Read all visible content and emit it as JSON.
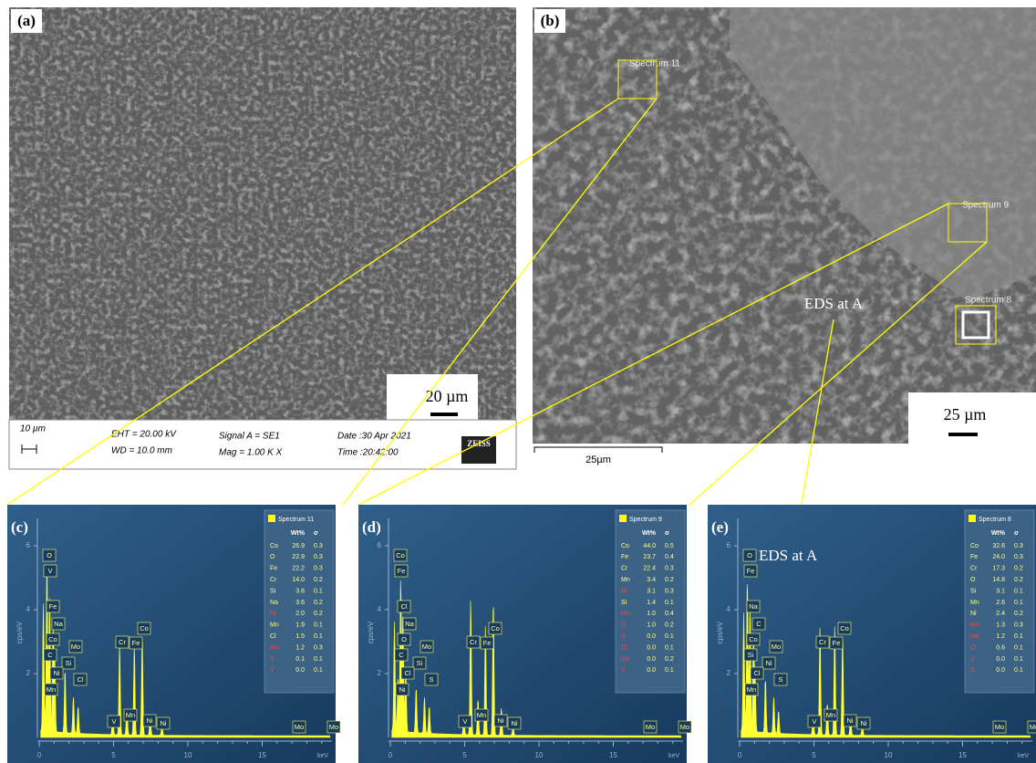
{
  "panel_a": {
    "label": "(a)",
    "scale_bar": "20 µm",
    "info": {
      "scale": "10 µm",
      "eht": "EHT = 20.00 kV",
      "wd": "WD = 10.0 mm",
      "signal": "Signal A = SE1",
      "mag": "Mag =   1.00 K X",
      "date": "Date :30 Apr 2021",
      "time": "Time :20:42:00",
      "brand": "ZEISS"
    }
  },
  "panel_b": {
    "label": "(b)",
    "spectra": [
      "Spectrum 11",
      "Spectrum 9",
      "Spectrum 8"
    ],
    "annotation": "EDS at A",
    "scale_bar": "25 µm",
    "instrument_scale": "25µm"
  },
  "axis": {
    "y_label": "cps/eV",
    "yticks": [
      "2",
      "4",
      "6"
    ],
    "xticks": [
      "0",
      "5",
      "10",
      "15"
    ],
    "x_unit": "keV"
  },
  "spectra": [
    {
      "label": "(c)",
      "title": "Spectrum 11",
      "header": [
        "Wt%",
        "σ"
      ],
      "rows": [
        [
          "Co",
          "26.9",
          "0.3"
        ],
        [
          "O",
          "22.9",
          "0.3"
        ],
        [
          "Fe",
          "22.2",
          "0.3"
        ],
        [
          "Cr",
          "14.0",
          "0.2"
        ],
        [
          "Si",
          "3.6",
          "0.1"
        ],
        [
          "Na",
          "3.6",
          "0.2"
        ],
        [
          "Ni",
          "2.0",
          "0.2"
        ],
        [
          "Mn",
          "1.9",
          "0.1"
        ],
        [
          "Cl",
          "1.5",
          "0.1"
        ],
        [
          "Mo",
          "1.2",
          "0.3"
        ],
        [
          "S",
          "0.1",
          "0.1"
        ],
        [
          "V",
          "0.0",
          "0.1"
        ]
      ],
      "row_colors": [
        "#ffff80",
        "#ffff80",
        "#ffff80",
        "#ffff80",
        "#ffff80",
        "#ffff80",
        "#ff4040",
        "#ffff80",
        "#ffff80",
        "#ff4040",
        "#ff4040",
        "#ff4040"
      ],
      "peaks": [
        "O",
        "V",
        "Fe",
        "Na",
        "Co",
        "Mo",
        "C",
        "Si",
        "Ni",
        "Cl",
        "Mn",
        "Cr",
        "Fe",
        "Co",
        "V",
        "Mn",
        "Ni",
        "Ni",
        "Mo",
        "Mo"
      ]
    },
    {
      "label": "(d)",
      "title": "Spectrum 9",
      "header": [
        "Wt%",
        "σ"
      ],
      "rows": [
        [
          "Co",
          "44.0",
          "0.5"
        ],
        [
          "Fe",
          "23.7",
          "0.4"
        ],
        [
          "Cr",
          "22.4",
          "0.3"
        ],
        [
          "Mn",
          "3.4",
          "0.2"
        ],
        [
          "Ni",
          "3.1",
          "0.3"
        ],
        [
          "Si",
          "1.4",
          "0.1"
        ],
        [
          "Mo",
          "1.0",
          "0.4"
        ],
        [
          "O",
          "1.0",
          "0.2"
        ],
        [
          "S",
          "0.0",
          "0.1"
        ],
        [
          "Cl",
          "0.0",
          "0.1"
        ],
        [
          "Na",
          "0.0",
          "0.2"
        ],
        [
          "V",
          "0.0",
          "0.1"
        ]
      ],
      "row_colors": [
        "#ffff80",
        "#ffff80",
        "#ffff80",
        "#ffff80",
        "#ff4040",
        "#ffff80",
        "#ff4040",
        "#ff4040",
        "#ff4040",
        "#ff4040",
        "#ff4040",
        "#ff4040"
      ],
      "peaks": [
        "Co",
        "Fe",
        "Cl",
        "Na",
        "O",
        "Mo",
        "C",
        "Si",
        "Cl",
        "S",
        "Ni",
        "Cr",
        "Fe",
        "Co",
        "V",
        "Mn",
        "Ni",
        "Ni",
        "Mo",
        "Mo"
      ]
    },
    {
      "label": "(e)",
      "title": "Spectrum 8",
      "annotation": "EDS at A",
      "header": [
        "Wt%",
        "σ"
      ],
      "rows": [
        [
          "Co",
          "32.6",
          "0.3"
        ],
        [
          "Fe",
          "24.0",
          "0.3"
        ],
        [
          "Cr",
          "17.3",
          "0.2"
        ],
        [
          "O",
          "14.8",
          "0.2"
        ],
        [
          "Si",
          "3.1",
          "0.1"
        ],
        [
          "Mn",
          "2.6",
          "0.1"
        ],
        [
          "Ni",
          "2.4",
          "0.2"
        ],
        [
          "Mo",
          "1.3",
          "0.3"
        ],
        [
          "Na",
          "1.2",
          "0.1"
        ],
        [
          "Cl",
          "0.6",
          "0.1"
        ],
        [
          "V",
          "0.0",
          "0.1"
        ],
        [
          "S",
          "0.0",
          "0.1"
        ]
      ],
      "row_colors": [
        "#ffff80",
        "#ffff80",
        "#ffff80",
        "#ffff80",
        "#ffff80",
        "#ffff80",
        "#ffff80",
        "#ff4040",
        "#ff4040",
        "#ff4040",
        "#ff4040",
        "#ff4040"
      ],
      "peaks": [
        "O",
        "Fe",
        "Na",
        "C",
        "Co",
        "Mo",
        "Si",
        "Ni",
        "Cl",
        "S",
        "Mn",
        "Cr",
        "Fe",
        "Co",
        "V",
        "Mn",
        "Ni",
        "Ni",
        "Mo",
        "Mo"
      ]
    }
  ]
}
